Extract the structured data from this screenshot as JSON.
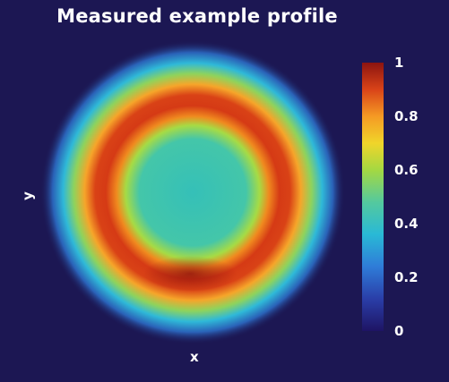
{
  "chart_data": {
    "type": "heatmap",
    "title": "Measured example profile",
    "xlabel": "x",
    "ylabel": "y",
    "colorbar": {
      "range": [
        0,
        1
      ],
      "ticks": [
        "0",
        "0.2",
        "0.4",
        "0.6",
        "0.8",
        "1"
      ],
      "colormap": "jet"
    },
    "profile": {
      "shape": "ring",
      "radial_intensity": [
        {
          "r": 0.0,
          "value": 0.36
        },
        {
          "r": 0.5,
          "value": 0.38
        },
        {
          "r": 0.75,
          "value": 0.55
        },
        {
          "r": 1.0,
          "value": 0.92
        },
        {
          "r": 1.2,
          "value": 0.92
        },
        {
          "r": 1.4,
          "value": 0.55
        },
        {
          "r": 1.6,
          "value": 0.22
        },
        {
          "r": 1.9,
          "value": 0.0
        }
      ],
      "peak_region": "bottom of ring",
      "peak_value": 1.0
    },
    "background_color": "#1c1753"
  }
}
